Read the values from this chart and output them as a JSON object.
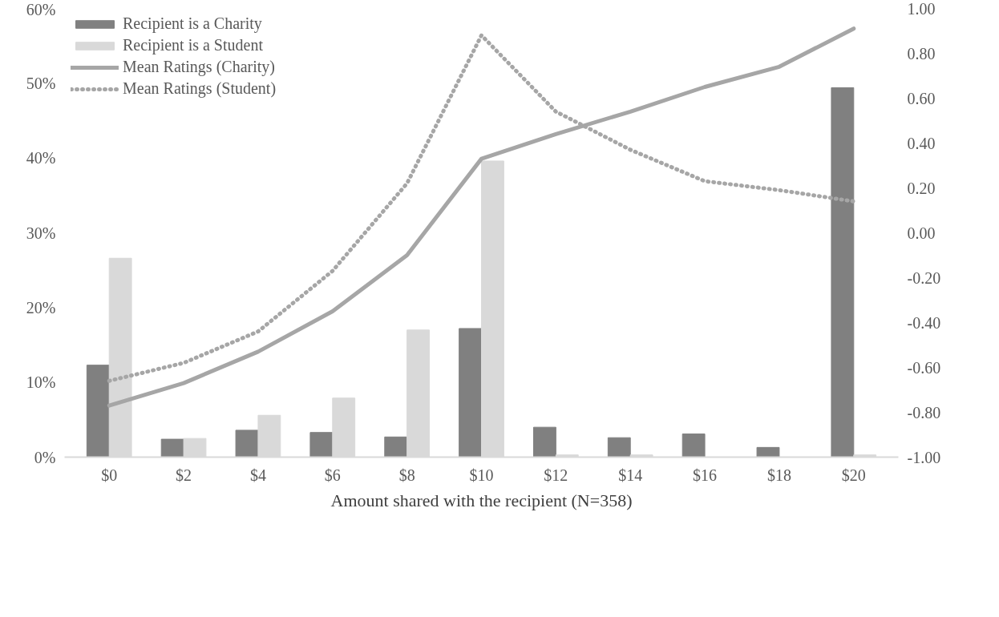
{
  "chart_data": {
    "type": "bar",
    "xlabel": "Amount shared with the recipient (N=358)",
    "categories": [
      "$0",
      "$2",
      "$4",
      "$6",
      "$8",
      "$10",
      "$12",
      "$14",
      "$16",
      "$18",
      "$20"
    ],
    "series": [
      {
        "name": "Recipient is a Charity",
        "color": "#808080",
        "values": [
          12.3,
          2.4,
          3.6,
          3.3,
          2.7,
          17.2,
          4.0,
          2.6,
          3.1,
          1.3,
          49.4
        ]
      },
      {
        "name": "Recipient is a Student",
        "color": "#d9d9d9",
        "values": [
          26.6,
          2.5,
          5.6,
          7.9,
          17.0,
          39.6,
          0.3,
          0.3,
          0,
          0,
          0.3
        ]
      },
      {
        "name": "Mean Ratings (Charity)",
        "type": "line",
        "axis": "y2",
        "line_style": "solid",
        "color": "#a6a6a6",
        "values": [
          -0.77,
          -0.67,
          -0.53,
          -0.35,
          -0.1,
          0.33,
          0.44,
          0.54,
          0.65,
          0.74,
          0.91
        ]
      },
      {
        "name": "Mean Ratings (Student)",
        "type": "line",
        "axis": "y2",
        "line_style": "dotted",
        "color": "#a6a6a6",
        "values": [
          -0.66,
          -0.58,
          -0.44,
          -0.17,
          0.22,
          0.88,
          0.54,
          0.37,
          0.23,
          0.19,
          0.14
        ]
      }
    ],
    "ylim": [
      0,
      60
    ],
    "yticks": [
      {
        "value": 0,
        "label": "0%"
      },
      {
        "value": 10,
        "label": "10%"
      },
      {
        "value": 20,
        "label": "20%"
      },
      {
        "value": 30,
        "label": "30%"
      },
      {
        "value": 40,
        "label": "40%"
      },
      {
        "value": 50,
        "label": "50%"
      },
      {
        "value": 60,
        "label": "60%"
      }
    ],
    "y2lim": [
      -1,
      1
    ],
    "y2ticks": [
      {
        "value": -1,
        "label": "-1.00"
      },
      {
        "value": -0.8,
        "label": "-0.80"
      },
      {
        "value": -0.6,
        "label": "-0.60"
      },
      {
        "value": -0.4,
        "label": "-0.40"
      },
      {
        "value": -0.2,
        "label": "-0.20"
      },
      {
        "value": 0,
        "label": "0.00"
      },
      {
        "value": 0.2,
        "label": "0.20"
      },
      {
        "value": 0.4,
        "label": "0.40"
      },
      {
        "value": 0.6,
        "label": "0.60"
      },
      {
        "value": 0.8,
        "label": "0.80"
      },
      {
        "value": 1,
        "label": "1.00"
      }
    ],
    "grid": false,
    "legend": "top left"
  }
}
